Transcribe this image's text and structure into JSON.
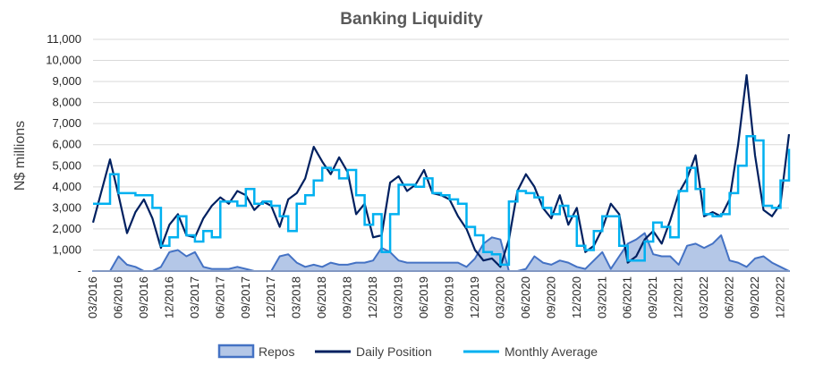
{
  "chart_data": {
    "type": "line",
    "title": "Banking Liquidity",
    "ylabel": "N$ millions",
    "xlabel": "",
    "ylim": [
      0,
      11000
    ],
    "yticks": [
      0,
      1000,
      2000,
      3000,
      4000,
      5000,
      6000,
      7000,
      8000,
      9000,
      10000,
      11000
    ],
    "ytick_labels": [
      "-",
      "1,000",
      "2,000",
      "3,000",
      "4,000",
      "5,000",
      "6,000",
      "7,000",
      "8,000",
      "9,000",
      "10,000",
      "11,000"
    ],
    "grid": "horizontal",
    "legend": "bottom",
    "x_tick_labels": [
      "03/2016",
      "06/2016",
      "09/2016",
      "12/2016",
      "03/2017",
      "06/2017",
      "09/2017",
      "12/2017",
      "03/2018",
      "06/2018",
      "09/2018",
      "12/2018",
      "03/2019",
      "06/2019",
      "09/2019",
      "12/2019",
      "03/2020",
      "06/2020",
      "09/2020",
      "12/2020",
      "03/2021",
      "06/2021",
      "09/2021",
      "12/2021",
      "03/2022",
      "06/2022",
      "09/2022",
      "12/2022"
    ],
    "x": [
      "03/2016",
      "04/2016",
      "05/2016",
      "06/2016",
      "07/2016",
      "08/2016",
      "09/2016",
      "10/2016",
      "11/2016",
      "12/2016",
      "01/2017",
      "02/2017",
      "03/2017",
      "04/2017",
      "05/2017",
      "06/2017",
      "07/2017",
      "08/2017",
      "09/2017",
      "10/2017",
      "11/2017",
      "12/2017",
      "01/2018",
      "02/2018",
      "03/2018",
      "04/2018",
      "05/2018",
      "06/2018",
      "07/2018",
      "08/2018",
      "09/2018",
      "10/2018",
      "11/2018",
      "12/2018",
      "01/2019",
      "02/2019",
      "03/2019",
      "04/2019",
      "05/2019",
      "06/2019",
      "07/2019",
      "08/2019",
      "09/2019",
      "10/2019",
      "11/2019",
      "12/2019",
      "01/2020",
      "02/2020",
      "03/2020",
      "04/2020",
      "05/2020",
      "06/2020",
      "07/2020",
      "08/2020",
      "09/2020",
      "10/2020",
      "11/2020",
      "12/2020",
      "01/2021",
      "02/2021",
      "03/2021",
      "04/2021",
      "05/2021",
      "06/2021",
      "07/2021",
      "08/2021",
      "09/2021",
      "10/2021",
      "11/2021",
      "12/2021",
      "01/2022",
      "02/2022",
      "03/2022",
      "04/2022",
      "05/2022",
      "06/2022",
      "07/2022",
      "08/2022",
      "09/2022",
      "10/2022",
      "11/2022",
      "12/2022",
      "01/2023"
    ],
    "series": [
      {
        "name": "Repos",
        "style": "area",
        "color": "#4472c4",
        "fill": "#b4c7e7",
        "values": [
          0,
          0,
          0,
          700,
          300,
          200,
          0,
          0,
          200,
          900,
          1000,
          700,
          900,
          200,
          100,
          100,
          100,
          200,
          100,
          0,
          0,
          0,
          700,
          800,
          400,
          200,
          300,
          200,
          400,
          300,
          300,
          400,
          400,
          500,
          1100,
          900,
          500,
          400,
          400,
          400,
          400,
          400,
          400,
          400,
          200,
          600,
          1300,
          1600,
          1500,
          0,
          0,
          100,
          700,
          400,
          300,
          500,
          400,
          200,
          100,
          500,
          900,
          100,
          700,
          1300,
          1500,
          1800,
          800,
          700,
          700,
          300,
          1200,
          1300,
          1100,
          1300,
          1700,
          500,
          400,
          200,
          600,
          700,
          400,
          200,
          0
        ]
      },
      {
        "name": "Daily Position",
        "style": "line",
        "color": "#002060",
        "values": [
          2300,
          3800,
          5300,
          3600,
          1800,
          2800,
          3400,
          2500,
          1100,
          2200,
          2700,
          1700,
          1600,
          2500,
          3100,
          3500,
          3200,
          3800,
          3600,
          2900,
          3300,
          3100,
          2100,
          3400,
          3700,
          4400,
          5900,
          5200,
          4600,
          5400,
          4700,
          2700,
          3200,
          1600,
          1700,
          4200,
          4500,
          3800,
          4100,
          4800,
          3700,
          3600,
          3400,
          2600,
          2000,
          1000,
          500,
          600,
          200,
          1500,
          3800,
          4600,
          4000,
          3000,
          2500,
          3600,
          2200,
          3000,
          900,
          1200,
          2000,
          3200,
          2700,
          400,
          700,
          1500,
          1900,
          1300,
          2400,
          3700,
          4400,
          5500,
          2600,
          2800,
          2600,
          3400,
          6000,
          9300,
          5500,
          2900,
          2600,
          3200,
          6500
        ]
      },
      {
        "name": "Monthly Average",
        "style": "step",
        "color": "#00b0f0",
        "values": [
          3200,
          3200,
          4600,
          3700,
          3700,
          3600,
          3600,
          3000,
          1200,
          1600,
          2600,
          1700,
          1400,
          1900,
          1600,
          3300,
          3300,
          3100,
          3900,
          3200,
          3300,
          3100,
          2600,
          1900,
          3200,
          3600,
          4300,
          4900,
          4800,
          4400,
          4800,
          3600,
          2200,
          2700,
          900,
          2700,
          4100,
          4100,
          4000,
          4400,
          3700,
          3600,
          3400,
          3200,
          2100,
          1700,
          900,
          800,
          300,
          3300,
          3800,
          3700,
          3500,
          3000,
          2700,
          3100,
          2600,
          1200,
          1000,
          1900,
          2600,
          2600,
          1200,
          500,
          500,
          1400,
          2300,
          2100,
          1600,
          3800,
          4900,
          3900,
          2700,
          2600,
          2700,
          3700,
          5000,
          6400,
          6200,
          3100,
          3000,
          4300,
          5800
        ]
      }
    ]
  }
}
